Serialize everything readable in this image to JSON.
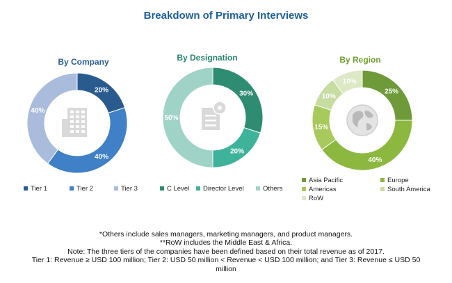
{
  "title": "Breakdown of Primary Interviews",
  "chart_data": [
    {
      "type": "pie",
      "title": "By Company",
      "hole": true,
      "center_icon": "building-icon",
      "categories": [
        "Tier 1",
        "Tier 2",
        "Tier 3"
      ],
      "values": [
        20,
        40,
        40
      ],
      "labels": [
        "20%",
        "40%",
        "40%"
      ],
      "colors": [
        "#2a5b8e",
        "#3f80c6",
        "#a9bcdc"
      ]
    },
    {
      "type": "pie",
      "title": "By Designation",
      "hole": true,
      "center_icon": "document-gear-icon",
      "categories": [
        "C Level",
        "Director Level",
        "Others"
      ],
      "values": [
        30,
        20,
        50
      ],
      "labels": [
        "30%",
        "20%",
        "50%"
      ],
      "colors": [
        "#2d8c72",
        "#3fb29a",
        "#9fd3c7"
      ]
    },
    {
      "type": "pie",
      "title": "By Region",
      "hole": true,
      "center_icon": "globe-icon",
      "categories": [
        "Asia Pacific",
        "Europe",
        "Americas",
        "South America",
        "RoW"
      ],
      "values": [
        25,
        40,
        15,
        10,
        10
      ],
      "labels": [
        "25%",
        "40%",
        "15%",
        "10%",
        "10%"
      ],
      "colors": [
        "#6e9a3a",
        "#8cb83f",
        "#a8c95b",
        "#c6dca0",
        "#dde8c5"
      ]
    }
  ],
  "legends": [
    [
      "Tier 1",
      "Tier 2",
      "Tier 3"
    ],
    [
      "C Level",
      "Director Level",
      "Others"
    ],
    [
      "Asia Pacific",
      "Europe",
      "Americas",
      "South America",
      "RoW"
    ]
  ],
  "footnotes": [
    "*Others include sales managers, marketing managers, and product managers.",
    "**RoW includes the Middle East & Africa.",
    "Note: The three tiers of the companies have been defined based on their total revenue as of 2017.",
    "Tier 1: Revenue ≥ USD 100 million; Tier 2:  USD 50 million < Revenue < USD 100 million; and Tier 3: Revenue ≤ USD 50",
    "million"
  ]
}
